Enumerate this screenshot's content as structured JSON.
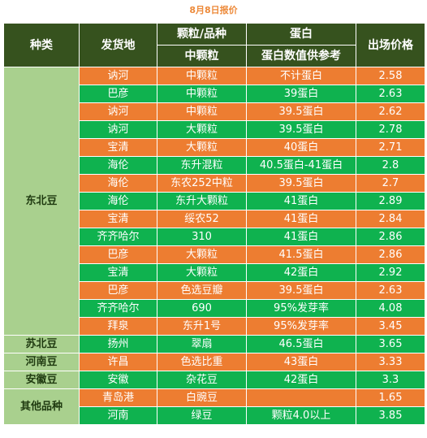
{
  "title": "8月8日报价",
  "headers": {
    "col1": "种类",
    "col2": "发货地",
    "col3_top": "颗粒/品种",
    "col3_bottom": "中颗粒",
    "col4_top": "蛋白",
    "col4_bottom": "蛋白数值供参考",
    "col5": "出场价格"
  },
  "categories": {
    "dongbei": "东北豆",
    "subei": "苏北豆",
    "henan": "河南豆",
    "anhui": "安徽豆",
    "other": "其他品种"
  },
  "colors": {
    "orange": "#ED7D31",
    "green": "#0FB24F",
    "header": "#36521E",
    "category": "#A9D08E"
  },
  "rows": [
    {
      "origin": "讷河",
      "grain": "中颗粒",
      "protein": "不计蛋白",
      "price": "2.58"
    },
    {
      "origin": "巴彦",
      "grain": "中颗粒",
      "protein": "39蛋白",
      "price": "2.63"
    },
    {
      "origin": "讷河",
      "grain": "中颗粒",
      "protein": "39.5蛋白",
      "price": "2.62"
    },
    {
      "origin": "讷河",
      "grain": "大颗粒",
      "protein": "39.5蛋白",
      "price": "2.78"
    },
    {
      "origin": "宝清",
      "grain": "大颗粒",
      "protein": "40蛋白",
      "price": "2.71"
    },
    {
      "origin": "海伦",
      "grain": "东升混粒",
      "protein": "40.5蛋白-41蛋白",
      "price": "2.8"
    },
    {
      "origin": "海伦",
      "grain": "东农252中粒",
      "protein": "39.5蛋白",
      "price": "2.7"
    },
    {
      "origin": "海伦",
      "grain": "东升大颗粒",
      "protein": "41蛋白",
      "price": "2.89"
    },
    {
      "origin": "宝清",
      "grain": "绥农52",
      "protein": "41蛋白",
      "price": "2.84"
    },
    {
      "origin": "齐齐哈尔",
      "grain": "310",
      "protein": "41蛋白",
      "price": "2.86"
    },
    {
      "origin": "巴彦",
      "grain": "大颗粒",
      "protein": "41.5蛋白",
      "price": "2.86"
    },
    {
      "origin": "宝清",
      "grain": "大颗粒",
      "protein": "42蛋白",
      "price": "2.92"
    },
    {
      "origin": "巴彦",
      "grain": "色选豆瓣",
      "protein": "39.5蛋白",
      "price": "2.63"
    },
    {
      "origin": "齐齐哈尔",
      "grain": "690",
      "protein": "95%发芽率",
      "price": "4.08"
    },
    {
      "origin": "拜泉",
      "grain": "东升1号",
      "protein": "95%发芽率",
      "price": "3.45"
    },
    {
      "origin": "扬州",
      "grain": "翠扇",
      "protein": "46.5蛋白",
      "price": "3.65"
    },
    {
      "origin": "许昌",
      "grain": "色选比重",
      "protein": "43蛋白",
      "price": "3.33"
    },
    {
      "origin": "安徽",
      "grain": "杂花豆",
      "protein": "42蛋白",
      "price": "3.3"
    },
    {
      "origin": "青岛港",
      "grain": "白豌豆",
      "protein": "",
      "price": "1.65"
    },
    {
      "origin": "河南",
      "grain": "绿豆",
      "protein": "颗粒4.0以上",
      "price": "3.85"
    }
  ]
}
